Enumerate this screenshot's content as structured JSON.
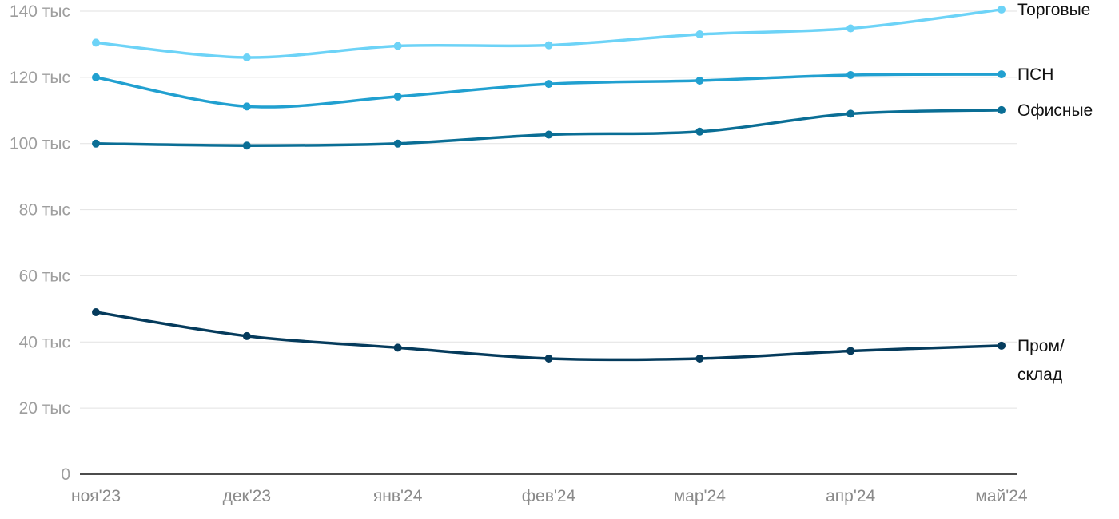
{
  "chart_data": {
    "type": "line",
    "categories": [
      "ноя'23",
      "дек'23",
      "янв'24",
      "фев'24",
      "мар'24",
      "апр'24",
      "май'24"
    ],
    "y_ticks": [
      {
        "value": 0,
        "label": "0"
      },
      {
        "value": 20000,
        "label": "20 тыс"
      },
      {
        "value": 40000,
        "label": "40 тыс"
      },
      {
        "value": 60000,
        "label": "60 тыс"
      },
      {
        "value": 80000,
        "label": "80 тыс"
      },
      {
        "value": 100000,
        "label": "100 тыс"
      },
      {
        "value": 120000,
        "label": "120 тыс"
      },
      {
        "value": 140000,
        "label": "140 тыс"
      }
    ],
    "ylim": [
      0,
      140000
    ],
    "grid": true,
    "legend": "end-of-line labels",
    "series": [
      {
        "name": "Торговые",
        "label_lines": [
          "Торговые"
        ],
        "color": "#6dd3f7",
        "values": [
          130500,
          126000,
          129500,
          129700,
          133000,
          134800,
          140500
        ]
      },
      {
        "name": "ПСН",
        "label_lines": [
          "ПСН"
        ],
        "color": "#21a0d0",
        "values": [
          120000,
          111200,
          114200,
          118000,
          119000,
          120700,
          120900
        ]
      },
      {
        "name": "Офисные",
        "label_lines": [
          "Офисные"
        ],
        "color": "#0a6e95",
        "values": [
          100000,
          99400,
          100000,
          102700,
          103600,
          109000,
          110100
        ]
      },
      {
        "name": "Пром/склад",
        "label_lines": [
          "Пром/",
          "склад"
        ],
        "color": "#053b5c",
        "values": [
          49000,
          41800,
          38300,
          35000,
          35000,
          37300,
          38900
        ]
      }
    ]
  }
}
